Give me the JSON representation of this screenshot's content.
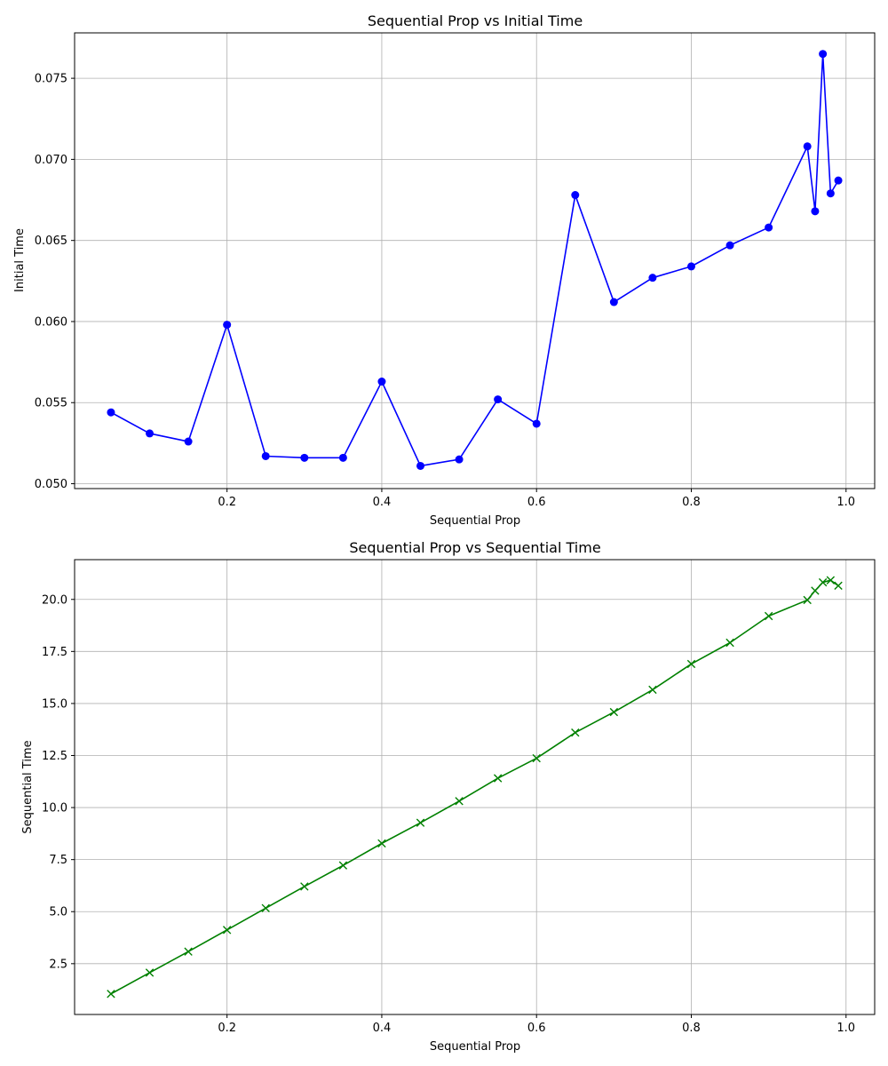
{
  "chart_data": [
    {
      "type": "line",
      "title": "Sequential Prop vs Initial Time",
      "xlabel": "Sequential Prop",
      "ylabel": "Initial Time",
      "xlim": [
        0.003,
        1.037
      ],
      "ylim": [
        0.0497,
        0.0778
      ],
      "xticks": [
        0.2,
        0.4,
        0.6,
        0.8,
        1.0
      ],
      "xtick_labels": [
        "0.2",
        "0.4",
        "0.6",
        "0.8",
        "1.0"
      ],
      "yticks": [
        0.05,
        0.055,
        0.06,
        0.065,
        0.07,
        0.075
      ],
      "ytick_labels": [
        "0.050",
        "0.055",
        "0.060",
        "0.065",
        "0.070",
        "0.075"
      ],
      "grid": true,
      "color": "#0000ff",
      "marker": "circle",
      "x": [
        0.05,
        0.1,
        0.15,
        0.2,
        0.25,
        0.3,
        0.35,
        0.4,
        0.45,
        0.5,
        0.55,
        0.6,
        0.65,
        0.7,
        0.75,
        0.8,
        0.85,
        0.9,
        0.95,
        0.96,
        0.97,
        0.98,
        0.99
      ],
      "y": [
        0.0544,
        0.0531,
        0.0526,
        0.0598,
        0.0517,
        0.0516,
        0.0516,
        0.0563,
        0.0511,
        0.0515,
        0.0552,
        0.0537,
        0.0678,
        0.0612,
        0.0627,
        0.0634,
        0.0647,
        0.0658,
        0.0708,
        0.0668,
        0.0765,
        0.0679,
        0.0687
      ]
    },
    {
      "type": "line",
      "title": "Sequential Prop vs Sequential Time",
      "xlabel": "Sequential Prop",
      "ylabel": "Sequential Time",
      "xlim": [
        0.003,
        1.037
      ],
      "ylim": [
        0.06,
        21.91
      ],
      "xticks": [
        0.2,
        0.4,
        0.6,
        0.8,
        1.0
      ],
      "xtick_labels": [
        "0.2",
        "0.4",
        "0.6",
        "0.8",
        "1.0"
      ],
      "yticks": [
        2.5,
        5.0,
        7.5,
        10.0,
        12.5,
        15.0,
        17.5,
        20.0
      ],
      "ytick_labels": [
        "2.5",
        "5.0",
        "7.5",
        "10.0",
        "12.5",
        "15.0",
        "17.5",
        "20.0"
      ],
      "grid": true,
      "color": "#008000",
      "marker": "x",
      "x": [
        0.05,
        0.1,
        0.15,
        0.2,
        0.25,
        0.3,
        0.35,
        0.4,
        0.45,
        0.5,
        0.55,
        0.6,
        0.65,
        0.7,
        0.75,
        0.8,
        0.85,
        0.9,
        0.95,
        0.96,
        0.97,
        0.98,
        0.99
      ],
      "y": [
        1.05,
        2.07,
        3.08,
        4.12,
        5.17,
        6.21,
        7.22,
        8.28,
        9.27,
        10.31,
        11.41,
        12.37,
        13.6,
        14.59,
        15.66,
        16.9,
        17.92,
        19.2,
        19.97,
        20.42,
        20.82,
        20.92,
        20.66
      ]
    }
  ]
}
